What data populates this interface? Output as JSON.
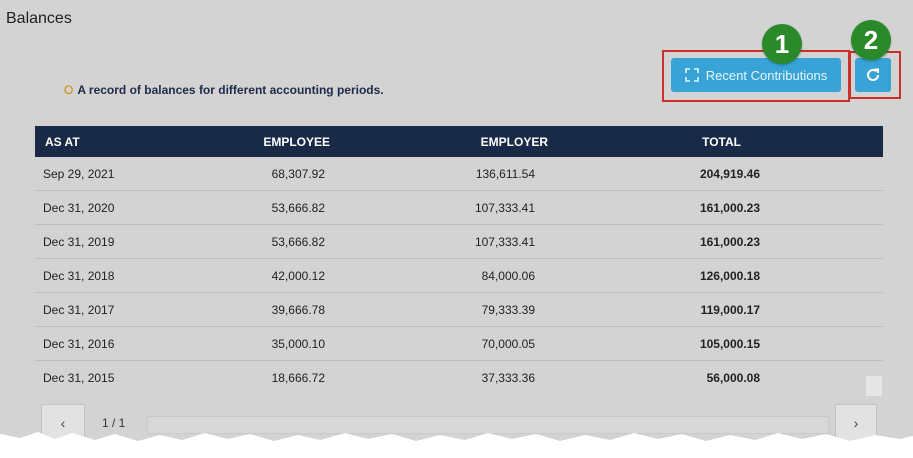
{
  "panel": {
    "title": "Balances",
    "subtitle_bullet": "O",
    "subtitle": "A record of balances for different accounting periods."
  },
  "buttons": {
    "recent_contributions_label": "Recent Contributions",
    "badge_1": "1",
    "badge_2": "2"
  },
  "table": {
    "columns": [
      "AS AT",
      "EMPLOYEE",
      "EMPLOYER",
      "TOTAL"
    ],
    "rows": [
      {
        "as_at": "Sep 29, 2021",
        "employee": "68,307.92",
        "employer": "136,611.54",
        "total": "204,919.46"
      },
      {
        "as_at": "Dec 31, 2020",
        "employee": "53,666.82",
        "employer": "107,333.41",
        "total": "161,000.23"
      },
      {
        "as_at": "Dec 31, 2019",
        "employee": "53,666.82",
        "employer": "107,333.41",
        "total": "161,000.23"
      },
      {
        "as_at": "Dec 31, 2018",
        "employee": "42,000.12",
        "employer": "84,000.06",
        "total": "126,000.18"
      },
      {
        "as_at": "Dec 31, 2017",
        "employee": "39,666.78",
        "employer": "79,333.39",
        "total": "119,000.17"
      },
      {
        "as_at": "Dec 31, 2016",
        "employee": "35,000.10",
        "employer": "70,000.05",
        "total": "105,000.15"
      },
      {
        "as_at": "Dec 31, 2015",
        "employee": "18,666.72",
        "employer": "37,333.36",
        "total": "56,000.08"
      }
    ]
  },
  "pager": {
    "page_info": "1 / 1",
    "prev_icon": "chevron-left-icon",
    "next_icon": "chevron-right-icon"
  },
  "colors": {
    "accent": "#37a3d7",
    "header_bg": "#182a45",
    "highlight": "#c9302c",
    "badge": "#2a8a2a"
  }
}
